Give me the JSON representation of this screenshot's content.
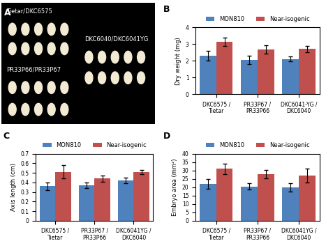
{
  "image_panel": {
    "panel_label": "A",
    "labels": [
      "Tietar/DKC6575",
      "DKC6040/DKC6041YG",
      "PR33P66/PR33P67"
    ]
  },
  "chart_data": [
    {
      "type": "bar",
      "panel_label": "B",
      "ylabel": "Dry weight (mg)",
      "categories": [
        "DKC6575 / Tietar",
        "PR33P67 / PR33P66",
        "DKC6041-YG / DKC6040"
      ],
      "series": [
        {
          "name": "MON810",
          "color": "#4f81bd",
          "values": [
            2.3,
            2.05,
            2.1
          ],
          "errors": [
            0.3,
            0.25,
            0.15
          ]
        },
        {
          "name": "Near-isogenic",
          "color": "#c0504d",
          "values": [
            3.15,
            2.68,
            2.7
          ],
          "errors": [
            0.25,
            0.25,
            0.2
          ]
        }
      ],
      "ylim": [
        0,
        4
      ],
      "yticks": [
        0,
        1,
        2,
        3,
        4
      ],
      "legend": "top"
    },
    {
      "type": "bar",
      "panel_label": "C",
      "ylabel": "Axis length (cm)",
      "categories": [
        "DKC6575 / Tietar",
        "PR33P67 / PR33P66",
        "DKC6041YG / DKC6040"
      ],
      "series": [
        {
          "name": "MON810",
          "color": "#4f81bd",
          "values": [
            0.36,
            0.37,
            0.42
          ],
          "errors": [
            0.04,
            0.03,
            0.03
          ]
        },
        {
          "name": "Near-isogenic",
          "color": "#c0504d",
          "values": [
            0.51,
            0.44,
            0.51
          ],
          "errors": [
            0.07,
            0.03,
            0.02
          ]
        }
      ],
      "ylim": [
        0,
        0.7
      ],
      "yticks": [
        0,
        0.1,
        0.2,
        0.3,
        0.4,
        0.5,
        0.6,
        0.7
      ],
      "legend": "top"
    },
    {
      "type": "bar",
      "panel_label": "D",
      "ylabel": "Embryo area (mm²)",
      "categories": [
        "DKC6575 / Tietar",
        "PR33P67 / PR33P66",
        "DKC6041YG / DKC6040"
      ],
      "series": [
        {
          "name": "MON810",
          "color": "#4f81bd",
          "values": [
            22,
            20.5,
            20
          ],
          "errors": [
            3,
            2,
            2.5
          ]
        },
        {
          "name": "Near-isogenic",
          "color": "#c0504d",
          "values": [
            31,
            28,
            27
          ],
          "errors": [
            3,
            2.5,
            4
          ]
        }
      ],
      "ylim": [
        0,
        40
      ],
      "yticks": [
        0,
        5,
        10,
        15,
        20,
        25,
        30,
        35,
        40
      ],
      "legend": "top"
    }
  ]
}
